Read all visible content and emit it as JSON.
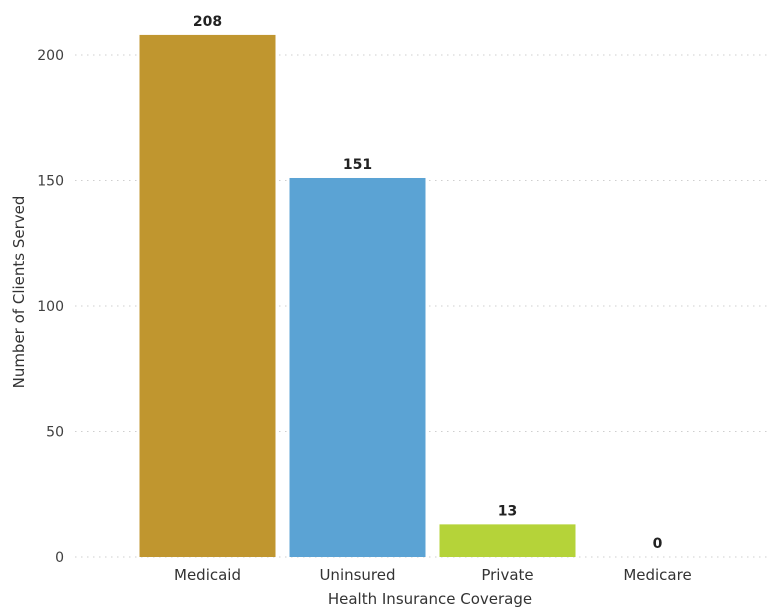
{
  "chart_data": {
    "type": "bar",
    "title": "",
    "xlabel": "Health Insurance Coverage",
    "ylabel": "Number of Clients Served",
    "categories": [
      "Medicaid",
      "Uninsured",
      "Private",
      "Medicare"
    ],
    "values": [
      208,
      151,
      13,
      0
    ],
    "data_labels": [
      "208",
      "151",
      "13",
      "0"
    ],
    "colors": [
      "#C0962F",
      "#5BA3D4",
      "#B5D339",
      "#7F7F7F"
    ],
    "ylim": [
      0,
      210
    ],
    "yticks": [
      0,
      50,
      100,
      150,
      200
    ],
    "ytick_labels": [
      "0",
      "50",
      "100",
      "150",
      "200"
    ],
    "grid": true,
    "legend": "none"
  }
}
